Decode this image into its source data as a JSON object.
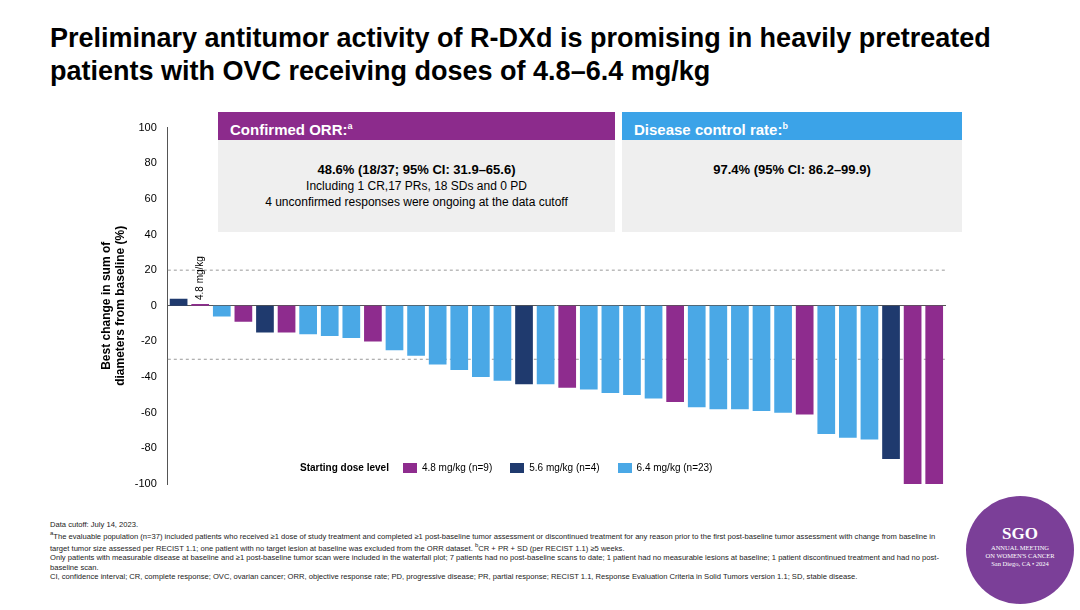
{
  "title": "Preliminary antitumor activity of R-DXd is promising in heavily pretreated patients with OVC receiving doses of 4.8–6.4 mg/kg",
  "chart_data": {
    "type": "bar",
    "ylabel": [
      "Best change in sum of",
      "diameters from baseline (%)"
    ],
    "categories": [
      null,
      null,
      null,
      null,
      null,
      null,
      null,
      null,
      null,
      null,
      null,
      null,
      null,
      null,
      null,
      null,
      null,
      null,
      null,
      null,
      null,
      null,
      null,
      null,
      null,
      null,
      null,
      null,
      null,
      null,
      null,
      null,
      null,
      null,
      null,
      null
    ],
    "series": [
      {
        "name": "4.8 mg/kg (n=9)",
        "color": "#8e2c8e",
        "values": [
          null,
          1,
          null,
          -9,
          null,
          -15,
          null,
          null,
          null,
          -20,
          null,
          null,
          null,
          null,
          null,
          null,
          null,
          null,
          -46,
          null,
          null,
          null,
          null,
          -54,
          null,
          null,
          null,
          null,
          null,
          -61,
          null,
          null,
          null,
          null,
          -100,
          -100
        ]
      },
      {
        "name": "5.6 mg/kg (n=4)",
        "color": "#1f3a6e",
        "values": [
          4,
          null,
          null,
          null,
          -15,
          null,
          null,
          null,
          null,
          null,
          null,
          null,
          null,
          null,
          null,
          null,
          -44,
          null,
          null,
          null,
          null,
          null,
          null,
          null,
          null,
          null,
          null,
          null,
          null,
          null,
          null,
          null,
          null,
          -86,
          null,
          null
        ]
      },
      {
        "name": "6.4 mg/kg (n=23)",
        "color": "#4aa8e6",
        "values": [
          null,
          null,
          -6,
          null,
          null,
          null,
          -16,
          -17,
          -18,
          null,
          -25,
          -28,
          -33,
          -36,
          -40,
          -42,
          null,
          -44,
          null,
          -47,
          -49,
          -50,
          -52,
          null,
          -57,
          -58,
          -58,
          -59,
          -60,
          null,
          -72,
          -74,
          -75,
          null,
          null,
          null
        ]
      }
    ],
    "ylim": [
      -100,
      100
    ],
    "yticks": [
      -100,
      -80,
      -60,
      -40,
      -20,
      0,
      20,
      40,
      60,
      80,
      100
    ],
    "grid": false,
    "tick_labels": "y",
    "legend": "bottom",
    "legend_title": "Starting dose level",
    "reference_lines": [
      20,
      -30
    ],
    "annotations": [
      {
        "text": "4.8 mg/kg",
        "bar": 1
      }
    ]
  },
  "panels": [
    {
      "title": "Confirmed ORR:",
      "mark": "a",
      "color": "#8c2b8c",
      "lines": [
        "48.6% (18/37; 95% CI: 31.9–65.6)",
        "Including 1 CR,17 PRs, 18 SDs and 0 PD",
        "4 unconfirmed responses were ongoing at the data cutoff"
      ]
    },
    {
      "title": "Disease control rate:",
      "mark": "b",
      "color": "#3ba3e8",
      "lines": [
        "97.4% (95% CI: 86.2–99.9)"
      ]
    }
  ],
  "footnotes": [
    [
      {
        "text": "Data cutoff: July 14, 2023."
      }
    ],
    [
      {
        "sup": "a"
      },
      {
        "text": "The evaluable population (n=37) included patients who received ≥1 dose of study treatment and completed ≥1 post-baseline tumor assessment or discontinued treatment for any reason prior to the first post-baseline tumor assessment with change from baseline in target tumor size assessed per RECIST 1.1; one patient with no target lesion at baseline was excluded from the ORR dataset. "
      },
      {
        "sup": "b"
      },
      {
        "text": "CR + PR + SD (per RECIST 1.1) ≥5 weeks."
      }
    ],
    [
      {
        "text": "Only patients with measurable disease at baseline and ≥1 post-baseline tumor scan were included in the waterfall plot; 7 patients had no post-baseline scans to date; 1 patient had no measurable lesions at baseline; 1 patient discontinued treatment and had no post-baseline scan."
      }
    ],
    [
      {
        "text": "CI, confidence interval; CR, complete response; OVC, ovarian cancer; ORR, objective response rate; PD, progressive disease; PR, partial response; RECIST 1.1, Response Evaluation Criteria in Solid Tumors version 1.1; SD, stable disease."
      }
    ]
  ],
  "logo": [
    "SGO",
    "ANNUAL MEETING",
    "ON WOMEN'S CANCER",
    "San Diego, CA • 2024"
  ]
}
